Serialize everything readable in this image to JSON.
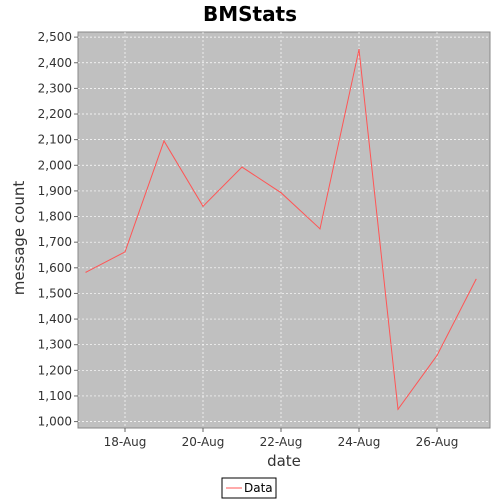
{
  "chart_data": {
    "type": "line",
    "title": "BMStats",
    "xlabel": "date",
    "ylabel": "message count",
    "x": [
      "17-Aug",
      "18-Aug",
      "19-Aug",
      "20-Aug",
      "21-Aug",
      "22-Aug",
      "23-Aug",
      "24-Aug",
      "25-Aug",
      "26-Aug",
      "27-Aug"
    ],
    "x_tick_labels": [
      "18-Aug",
      "20-Aug",
      "22-Aug",
      "24-Aug",
      "26-Aug"
    ],
    "y_tick_labels": [
      "1,000",
      "1,100",
      "1,200",
      "1,300",
      "1,400",
      "1,500",
      "1,600",
      "1,700",
      "1,800",
      "1,900",
      "2,000",
      "2,100",
      "2,200",
      "2,300",
      "2,400",
      "2,500"
    ],
    "ylim": [
      975,
      2520
    ],
    "series": [
      {
        "name": "Data",
        "color": "#ff5555",
        "values": [
          1583,
          1662,
          2095,
          1840,
          1993,
          1893,
          1752,
          2452,
          1048,
          1258,
          1555
        ]
      }
    ],
    "grid": true,
    "legend_position": "bottom",
    "plot_background": "#c0c0c0"
  }
}
